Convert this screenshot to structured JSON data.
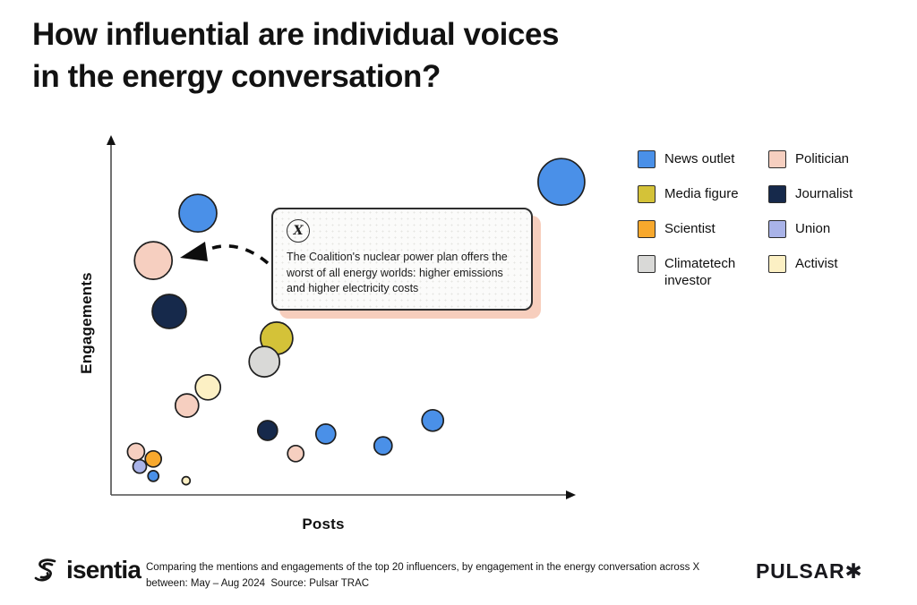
{
  "title": "How influential are individual voices\nin the energy conversation?",
  "chart": {
    "xlabel": "Posts",
    "ylabel": "Engagements"
  },
  "callout": {
    "icon": "x-social-icon",
    "icon_glyph": "X",
    "text": "The Coalition's nuclear power plan offers the worst of all energy worlds: higher emissions and higher electricity costs",
    "shadow_color": "#f7cebd"
  },
  "legend": {
    "order": [
      "news_outlet",
      "politician",
      "media_figure",
      "journalist",
      "scientist",
      "union",
      "climatetech_investor",
      "activist"
    ]
  },
  "footer": {
    "brand_left": "isentia",
    "caption_line1": "Comparing the mentions and engagements of the top 20 influencers, by engagement in the energy conversation across X",
    "caption_line2": "between: May – Aug 2024  Source: Pulsar TRAC",
    "brand_right": "PULSAR✱"
  },
  "chart_data": {
    "type": "scatter",
    "subtype": "bubble",
    "title": "How influential are individual voices in the energy conversation?",
    "xlabel": "Posts",
    "ylabel": "Engagements",
    "axes_numeric_labels": false,
    "xlim": [
      0,
      100
    ],
    "ylim": [
      0,
      100
    ],
    "grid": false,
    "legend_position": "right",
    "bubble_stroke": "#1f1f1f",
    "categories": {
      "news_outlet": {
        "label": "News outlet",
        "color": "#4a90e8"
      },
      "politician": {
        "label": "Politician",
        "color": "#f6cfc0"
      },
      "media_figure": {
        "label": "Media figure",
        "color": "#d4c238"
      },
      "journalist": {
        "label": "Journalist",
        "color": "#16294b"
      },
      "scientist": {
        "label": "Scientist",
        "color": "#f7a82d"
      },
      "union": {
        "label": "Union",
        "color": "#a9b3e8"
      },
      "climatetech_investor": {
        "label": "Climatetech investor",
        "color": "#d9d9d7"
      },
      "activist": {
        "label": "Activist",
        "color": "#fcf0c4"
      }
    },
    "points": [
      {
        "category": "news_outlet",
        "posts": 99.0,
        "engagements": 87.9,
        "size": 26
      },
      {
        "category": "news_outlet",
        "posts": 19.1,
        "engagements": 79.1,
        "size": 21
      },
      {
        "category": "politician",
        "posts": 9.3,
        "engagements": 65.8,
        "size": 21,
        "annotation": "callout"
      },
      {
        "category": "journalist",
        "posts": 12.8,
        "engagements": 51.5,
        "size": 19
      },
      {
        "category": "media_figure",
        "posts": 36.4,
        "engagements": 44.0,
        "size": 18
      },
      {
        "category": "climatetech_investor",
        "posts": 33.7,
        "engagements": 37.4,
        "size": 17
      },
      {
        "category": "politician",
        "posts": 16.7,
        "engagements": 25.1,
        "size": 13
      },
      {
        "category": "activist",
        "posts": 21.3,
        "engagements": 30.2,
        "size": 14
      },
      {
        "category": "journalist",
        "posts": 34.4,
        "engagements": 18.1,
        "size": 11
      },
      {
        "category": "news_outlet",
        "posts": 47.2,
        "engagements": 17.1,
        "size": 11
      },
      {
        "category": "news_outlet",
        "posts": 70.7,
        "engagements": 20.9,
        "size": 12
      },
      {
        "category": "news_outlet",
        "posts": 59.8,
        "engagements": 13.8,
        "size": 10
      },
      {
        "category": "politician",
        "posts": 40.6,
        "engagements": 11.6,
        "size": 9
      },
      {
        "category": "politician",
        "posts": 5.5,
        "engagements": 12.1,
        "size": 9.5
      },
      {
        "category": "scientist",
        "posts": 9.3,
        "engagements": 10.1,
        "size": 9
      },
      {
        "category": "union",
        "posts": 6.3,
        "engagements": 8.0,
        "size": 7.5
      },
      {
        "category": "news_outlet",
        "posts": 9.3,
        "engagements": 5.3,
        "size": 6
      },
      {
        "category": "activist",
        "posts": 16.5,
        "engagements": 4.0,
        "size": 4.5
      }
    ]
  }
}
